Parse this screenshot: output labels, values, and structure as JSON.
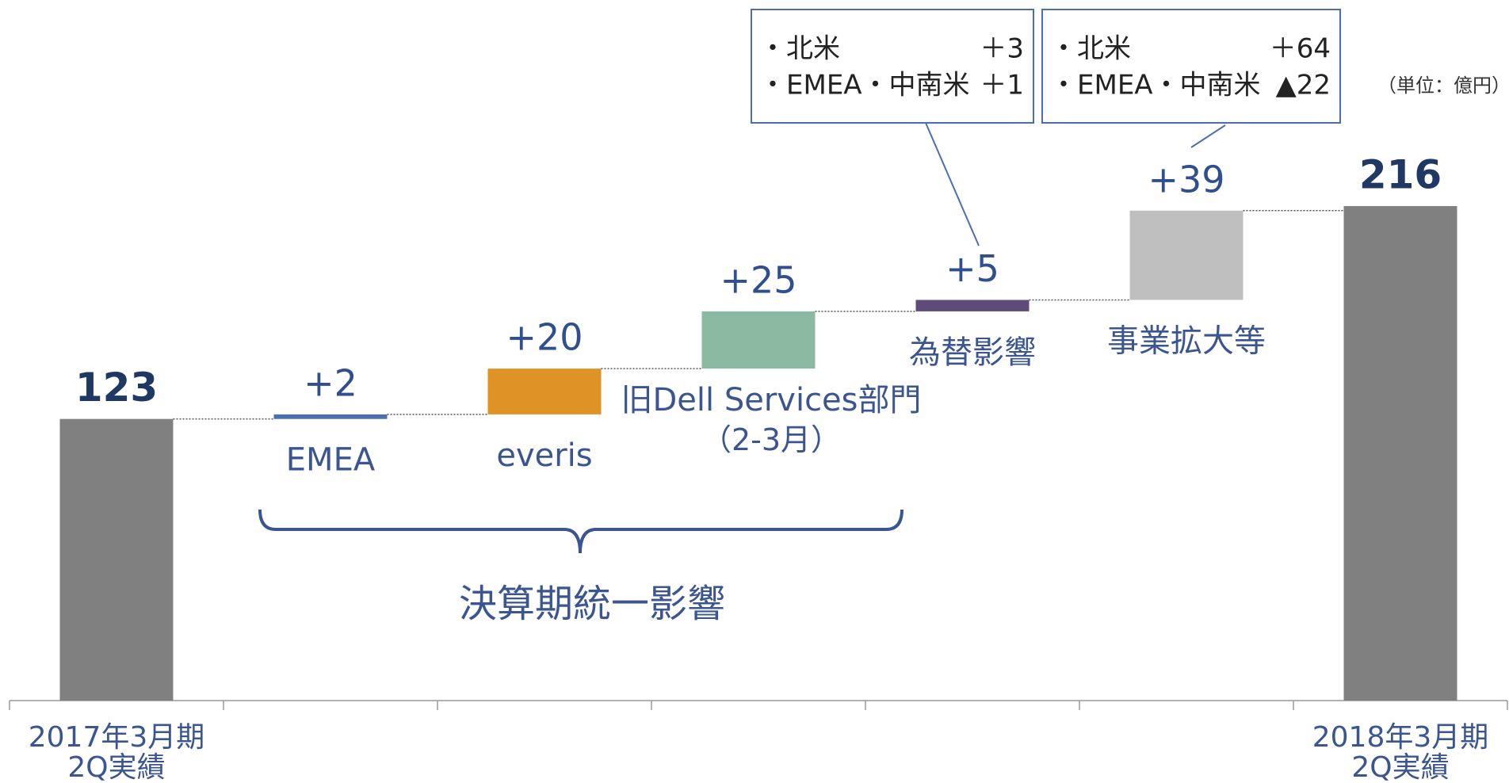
{
  "chart_data": {
    "type": "waterfall",
    "categories": [
      [
        "2017年3月期",
        "2Q実績"
      ],
      [
        "EMEA"
      ],
      [
        "everis"
      ],
      [
        "旧Dell Services部門",
        "（2-3月）"
      ],
      [
        "為替影響"
      ],
      [
        "事業拡大等"
      ],
      [
        "2018年3月期",
        "2Q実績"
      ]
    ],
    "measures": [
      "total",
      "relative",
      "relative",
      "relative",
      "relative",
      "relative",
      "total"
    ],
    "values": [
      123,
      2,
      20,
      25,
      5,
      39,
      216
    ],
    "value_labels": [
      "123",
      "+2",
      "+20",
      "+25",
      "+5",
      "+39",
      "216"
    ],
    "colors": [
      "#808080",
      "#4a6fb0",
      "#e09325",
      "#8cb9a1",
      "#5f4b78",
      "#bfbfbf",
      "#808080"
    ],
    "unit": "（単位：億円）",
    "bracket": {
      "label": "決算期統一影響"
    },
    "callouts": [
      {
        "category": 4,
        "rows": [
          [
            "・北米",
            "＋3"
          ],
          [
            "・EMEA・中南米",
            "＋1"
          ]
        ]
      },
      {
        "category": 5,
        "rows": [
          [
            "・北米",
            "＋64"
          ],
          [
            "・EMEA・中南米",
            "▲22"
          ]
        ]
      }
    ]
  }
}
